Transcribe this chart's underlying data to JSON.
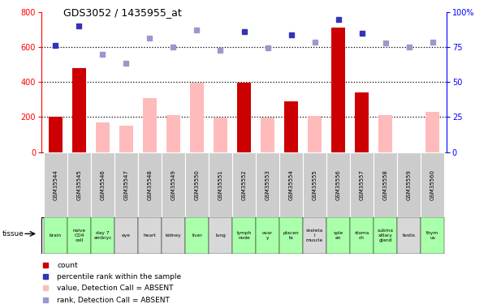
{
  "title": "GDS3052 / 1435955_at",
  "samples": [
    "GSM35544",
    "GSM35545",
    "GSM35546",
    "GSM35547",
    "GSM35548",
    "GSM35549",
    "GSM35550",
    "GSM35551",
    "GSM35552",
    "GSM35553",
    "GSM35554",
    "GSM35555",
    "GSM35556",
    "GSM35557",
    "GSM35558",
    "GSM35559",
    "GSM35560"
  ],
  "tissues": [
    "brain",
    "naive\nCD4\ncell",
    "day 7\nembryc",
    "eye",
    "heart",
    "kidney",
    "liver",
    "lung",
    "lymph\nnode",
    "ovar\ny",
    "placen\nta",
    "skeleta\nl\nmuscle",
    "sple\nen",
    "stoma\nch",
    "subma\nxillary\ngland",
    "testis",
    "thym\nus"
  ],
  "tissue_colors": [
    "#aaffaa",
    "#aaffaa",
    "#aaffaa",
    "#d8d8d8",
    "#d8d8d8",
    "#d8d8d8",
    "#aaffaa",
    "#d8d8d8",
    "#aaffaa",
    "#aaffaa",
    "#aaffaa",
    "#d8d8d8",
    "#aaffaa",
    "#aaffaa",
    "#aaffaa",
    "#d8d8d8",
    "#aaffaa"
  ],
  "count_values": [
    200,
    480,
    null,
    null,
    null,
    null,
    null,
    null,
    395,
    null,
    290,
    null,
    710,
    340,
    null,
    null,
    null
  ],
  "value_absent": [
    null,
    null,
    170,
    150,
    310,
    210,
    395,
    195,
    null,
    195,
    null,
    205,
    null,
    null,
    210,
    null,
    230
  ],
  "rank_present_raw": [
    610,
    720,
    null,
    null,
    null,
    null,
    null,
    null,
    690,
    null,
    670,
    null,
    760,
    680,
    null,
    null,
    null
  ],
  "rank_absent_raw": [
    null,
    null,
    560,
    510,
    650,
    600,
    700,
    580,
    null,
    595,
    null,
    630,
    null,
    null,
    625,
    600,
    630
  ],
  "ylim_left": [
    0,
    800
  ],
  "ylim_right": [
    0,
    100
  ],
  "yticks_left": [
    0,
    200,
    400,
    600,
    800
  ],
  "yticks_right": [
    0,
    25,
    50,
    75,
    100
  ],
  "bar_color_present": "#cc0000",
  "bar_color_absent": "#ffbbbb",
  "dot_color_present": "#3333bb",
  "dot_color_absent": "#9999cc",
  "bg_color": "#ffffff",
  "header_bg": "#cccccc",
  "legend_items": [
    {
      "color": "#cc0000",
      "shape": "square",
      "label": "count"
    },
    {
      "color": "#3333bb",
      "shape": "square",
      "label": "percentile rank within the sample"
    },
    {
      "color": "#ffbbbb",
      "shape": "square",
      "label": "value, Detection Call = ABSENT"
    },
    {
      "color": "#9999cc",
      "shape": "square",
      "label": "rank, Detection Call = ABSENT"
    }
  ]
}
